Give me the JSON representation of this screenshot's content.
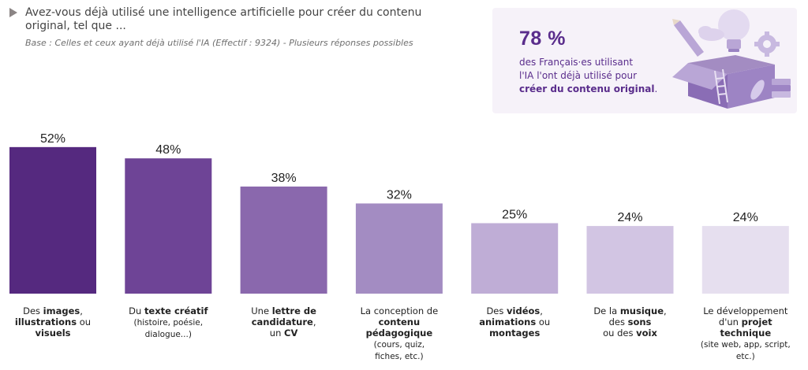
{
  "header": {
    "question": "Avez-vous déjà utilisé une intelligence artificielle pour créer du contenu original, tel que ...",
    "base": "Base : Celles et ceux ayant déjà utilisé l'IA (Effectif : 9324) - Plusieurs réponses possibles"
  },
  "callout": {
    "percent": "78 %",
    "line1": "des Français·es utilisant",
    "line2": "l'IA l'ont déjà utilisé pour",
    "line3": "créer du contenu original",
    "line3_suffix": "."
  },
  "chart_data": {
    "type": "bar",
    "unit": "%",
    "ylim": [
      0,
      55
    ],
    "values": [
      52,
      48,
      38,
      32,
      25,
      24,
      24
    ],
    "value_labels": [
      "52%",
      "48%",
      "38%",
      "32%",
      "25%",
      "24%",
      "24%"
    ],
    "colors": [
      "#55297f",
      "#6e4496",
      "#8a68ad",
      "#a38cc2",
      "#bfadd6",
      "#d2c5e3",
      "#e6dfef"
    ],
    "categories": [
      [
        [
          {
            "t": "Des "
          },
          {
            "t": "images",
            "b": true
          },
          {
            "t": ","
          }
        ],
        [
          {
            "t": "illustrations",
            "b": true
          },
          {
            "t": " ou"
          }
        ],
        [
          {
            "t": "visuels",
            "b": true
          }
        ]
      ],
      [
        [
          {
            "t": "Du "
          },
          {
            "t": "texte créatif",
            "b": true
          }
        ],
        [
          {
            "t": "(histoire, poésie,",
            "s": true
          }
        ],
        [
          {
            "t": "dialogue...)",
            "s": true
          }
        ]
      ],
      [
        [
          {
            "t": "Une "
          },
          {
            "t": "lettre de",
            "b": true
          }
        ],
        [
          {
            "t": "candidature",
            "b": true
          },
          {
            "t": ","
          }
        ],
        [
          {
            "t": "un "
          },
          {
            "t": "CV",
            "b": true
          }
        ]
      ],
      [
        [
          {
            "t": "La conception de"
          }
        ],
        [
          {
            "t": "contenu pédagogique",
            "b": true
          }
        ],
        [
          {
            "t": "(cours, quiz,",
            "s": true
          }
        ],
        [
          {
            "t": "fiches, etc.)",
            "s": true
          }
        ]
      ],
      [
        [
          {
            "t": "Des "
          },
          {
            "t": "vidéos",
            "b": true
          },
          {
            "t": ","
          }
        ],
        [
          {
            "t": "animations",
            "b": true
          },
          {
            "t": " ou"
          }
        ],
        [
          {
            "t": "montages",
            "b": true
          }
        ]
      ],
      [
        [
          {
            "t": "De la "
          },
          {
            "t": "musique",
            "b": true
          },
          {
            "t": ","
          }
        ],
        [
          {
            "t": "des "
          },
          {
            "t": "sons",
            "b": true
          }
        ],
        [
          {
            "t": "ou des "
          },
          {
            "t": "voix",
            "b": true
          }
        ]
      ],
      [
        [
          {
            "t": "Le développement"
          }
        ],
        [
          {
            "t": "d'un "
          },
          {
            "t": "projet technique",
            "b": true
          }
        ],
        [
          {
            "t": "(site web, app, script,",
            "s": true
          }
        ],
        [
          {
            "t": "etc.)",
            "s": true
          }
        ]
      ]
    ]
  }
}
